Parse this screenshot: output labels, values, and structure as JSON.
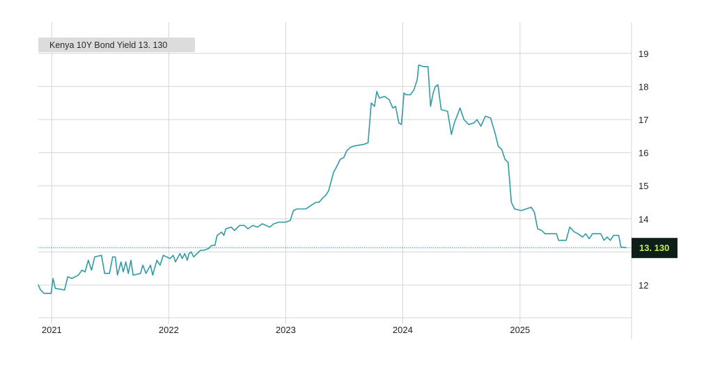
{
  "legend": {
    "label": "Kenya 10Y Bond Yield 13. 130"
  },
  "last_value_badge": {
    "label": "13. 130"
  },
  "colors": {
    "line": "#2e9aa5",
    "grid": "#d4d4d4",
    "badge_bg": "#0e1e18",
    "badge_text": "#c8ec55",
    "legend_bg": "#dcdcdc"
  },
  "chart_data": {
    "type": "line",
    "title": "",
    "xlabel": "",
    "ylabel": "",
    "x_ticks": [
      "2021",
      "2022",
      "2023",
      "2024",
      "2025"
    ],
    "y_ticks": [
      12,
      13,
      14,
      15,
      16,
      17,
      18,
      19
    ],
    "ylim": [
      11,
      20
    ],
    "xlim": [
      "2020-11-20",
      "2025-12-15"
    ],
    "y_axis_side": "right",
    "grid": true,
    "last_value": 13.13,
    "series": [
      {
        "name": "Kenya 10Y Bond Yield",
        "points": [
          [
            "2020-11-20",
            12.0
          ],
          [
            "2020-11-27",
            11.85
          ],
          [
            "2020-12-08",
            11.75
          ],
          [
            "2020-12-30",
            11.75
          ],
          [
            "2021-01-05",
            12.2
          ],
          [
            "2021-01-12",
            11.9
          ],
          [
            "2021-02-10",
            11.85
          ],
          [
            "2021-02-20",
            12.25
          ],
          [
            "2021-03-05",
            12.2
          ],
          [
            "2021-03-25",
            12.3
          ],
          [
            "2021-04-05",
            12.45
          ],
          [
            "2021-04-15",
            12.4
          ],
          [
            "2021-04-25",
            12.75
          ],
          [
            "2021-05-05",
            12.45
          ],
          [
            "2021-05-15",
            12.85
          ],
          [
            "2021-06-05",
            12.9
          ],
          [
            "2021-06-15",
            12.35
          ],
          [
            "2021-06-30",
            12.35
          ],
          [
            "2021-07-10",
            12.85
          ],
          [
            "2021-07-18",
            12.85
          ],
          [
            "2021-07-25",
            12.3
          ],
          [
            "2021-08-05",
            12.7
          ],
          [
            "2021-08-12",
            12.4
          ],
          [
            "2021-08-20",
            12.7
          ],
          [
            "2021-08-28",
            12.35
          ],
          [
            "2021-09-05",
            12.75
          ],
          [
            "2021-09-12",
            12.3
          ],
          [
            "2021-10-05",
            12.35
          ],
          [
            "2021-10-12",
            12.6
          ],
          [
            "2021-10-22",
            12.35
          ],
          [
            "2021-11-05",
            12.6
          ],
          [
            "2021-11-12",
            12.3
          ],
          [
            "2021-11-25",
            12.75
          ],
          [
            "2021-12-05",
            12.6
          ],
          [
            "2021-12-15",
            12.9
          ],
          [
            "2022-01-05",
            12.8
          ],
          [
            "2022-01-15",
            12.9
          ],
          [
            "2022-01-22",
            12.7
          ],
          [
            "2022-02-05",
            12.95
          ],
          [
            "2022-02-12",
            12.8
          ],
          [
            "2022-02-20",
            12.95
          ],
          [
            "2022-02-28",
            12.75
          ],
          [
            "2022-03-05",
            12.95
          ],
          [
            "2022-03-12",
            13.0
          ],
          [
            "2022-03-20",
            12.85
          ],
          [
            "2022-04-10",
            13.05
          ],
          [
            "2022-04-20",
            13.05
          ],
          [
            "2022-05-05",
            13.1
          ],
          [
            "2022-05-15",
            13.2
          ],
          [
            "2022-05-25",
            13.2
          ],
          [
            "2022-06-01",
            13.5
          ],
          [
            "2022-06-15",
            13.6
          ],
          [
            "2022-06-22",
            13.5
          ],
          [
            "2022-06-28",
            13.7
          ],
          [
            "2022-07-15",
            13.75
          ],
          [
            "2022-07-25",
            13.65
          ],
          [
            "2022-08-10",
            13.8
          ],
          [
            "2022-08-25",
            13.8
          ],
          [
            "2022-09-05",
            13.7
          ],
          [
            "2022-09-20",
            13.8
          ],
          [
            "2022-10-05",
            13.75
          ],
          [
            "2022-10-20",
            13.85
          ],
          [
            "2022-11-01",
            13.8
          ],
          [
            "2022-11-12",
            13.75
          ],
          [
            "2022-11-25",
            13.85
          ],
          [
            "2022-12-10",
            13.9
          ],
          [
            "2022-12-31",
            13.9
          ],
          [
            "2023-01-15",
            13.95
          ],
          [
            "2023-01-25",
            14.25
          ],
          [
            "2023-02-05",
            14.3
          ],
          [
            "2023-03-05",
            14.3
          ],
          [
            "2023-03-20",
            14.4
          ],
          [
            "2023-04-05",
            14.5
          ],
          [
            "2023-04-15",
            14.5
          ],
          [
            "2023-04-28",
            14.65
          ],
          [
            "2023-05-05",
            14.7
          ],
          [
            "2023-05-15",
            14.85
          ],
          [
            "2023-05-30",
            15.4
          ],
          [
            "2023-06-10",
            15.6
          ],
          [
            "2023-06-20",
            15.8
          ],
          [
            "2023-07-01",
            15.85
          ],
          [
            "2023-07-10",
            16.05
          ],
          [
            "2023-07-20",
            16.15
          ],
          [
            "2023-08-01",
            16.2
          ],
          [
            "2023-09-01",
            16.25
          ],
          [
            "2023-09-15",
            16.3
          ],
          [
            "2023-09-25",
            17.5
          ],
          [
            "2023-10-05",
            17.4
          ],
          [
            "2023-10-12",
            17.85
          ],
          [
            "2023-10-20",
            17.65
          ],
          [
            "2023-11-05",
            17.7
          ],
          [
            "2023-11-20",
            17.6
          ],
          [
            "2023-12-01",
            17.35
          ],
          [
            "2023-12-10",
            17.4
          ],
          [
            "2023-12-20",
            16.9
          ],
          [
            "2023-12-28",
            16.85
          ],
          [
            "2024-01-05",
            17.8
          ],
          [
            "2024-01-12",
            17.75
          ],
          [
            "2024-01-25",
            17.75
          ],
          [
            "2024-02-05",
            17.9
          ],
          [
            "2024-02-15",
            18.2
          ],
          [
            "2024-02-20",
            18.65
          ],
          [
            "2024-03-05",
            18.6
          ],
          [
            "2024-03-20",
            18.6
          ],
          [
            "2024-03-28",
            17.4
          ],
          [
            "2024-04-05",
            17.8
          ],
          [
            "2024-04-12",
            18.0
          ],
          [
            "2024-04-20",
            18.05
          ],
          [
            "2024-04-30",
            17.3
          ],
          [
            "2024-05-20",
            17.25
          ],
          [
            "2024-06-01",
            16.55
          ],
          [
            "2024-06-10",
            16.9
          ],
          [
            "2024-06-20",
            17.15
          ],
          [
            "2024-06-28",
            17.35
          ],
          [
            "2024-07-10",
            17.0
          ],
          [
            "2024-07-25",
            16.85
          ],
          [
            "2024-08-10",
            16.9
          ],
          [
            "2024-08-20",
            17.0
          ],
          [
            "2024-09-01",
            16.8
          ],
          [
            "2024-09-15",
            17.1
          ],
          [
            "2024-10-01",
            17.05
          ],
          [
            "2024-10-15",
            16.6
          ],
          [
            "2024-10-25",
            16.2
          ],
          [
            "2024-11-05",
            16.1
          ],
          [
            "2024-11-15",
            15.8
          ],
          [
            "2024-11-25",
            15.7
          ],
          [
            "2024-12-05",
            14.5
          ],
          [
            "2024-12-15",
            14.3
          ],
          [
            "2025-01-05",
            14.25
          ],
          [
            "2025-01-20",
            14.3
          ],
          [
            "2025-02-05",
            14.35
          ],
          [
            "2025-02-15",
            14.2
          ],
          [
            "2025-02-25",
            13.7
          ],
          [
            "2025-03-10",
            13.65
          ],
          [
            "2025-03-20",
            13.55
          ],
          [
            "2025-04-10",
            13.55
          ],
          [
            "2025-04-25",
            13.55
          ],
          [
            "2025-05-01",
            13.35
          ],
          [
            "2025-05-25",
            13.35
          ],
          [
            "2025-06-05",
            13.75
          ],
          [
            "2025-06-20",
            13.6
          ],
          [
            "2025-07-01",
            13.55
          ],
          [
            "2025-07-15",
            13.45
          ],
          [
            "2025-07-25",
            13.55
          ],
          [
            "2025-08-05",
            13.4
          ],
          [
            "2025-08-15",
            13.55
          ],
          [
            "2025-09-10",
            13.55
          ],
          [
            "2025-09-20",
            13.35
          ],
          [
            "2025-09-30",
            13.45
          ],
          [
            "2025-10-10",
            13.35
          ],
          [
            "2025-10-20",
            13.5
          ],
          [
            "2025-11-05",
            13.5
          ],
          [
            "2025-11-12",
            13.15
          ],
          [
            "2025-11-28",
            13.13
          ]
        ]
      }
    ]
  }
}
